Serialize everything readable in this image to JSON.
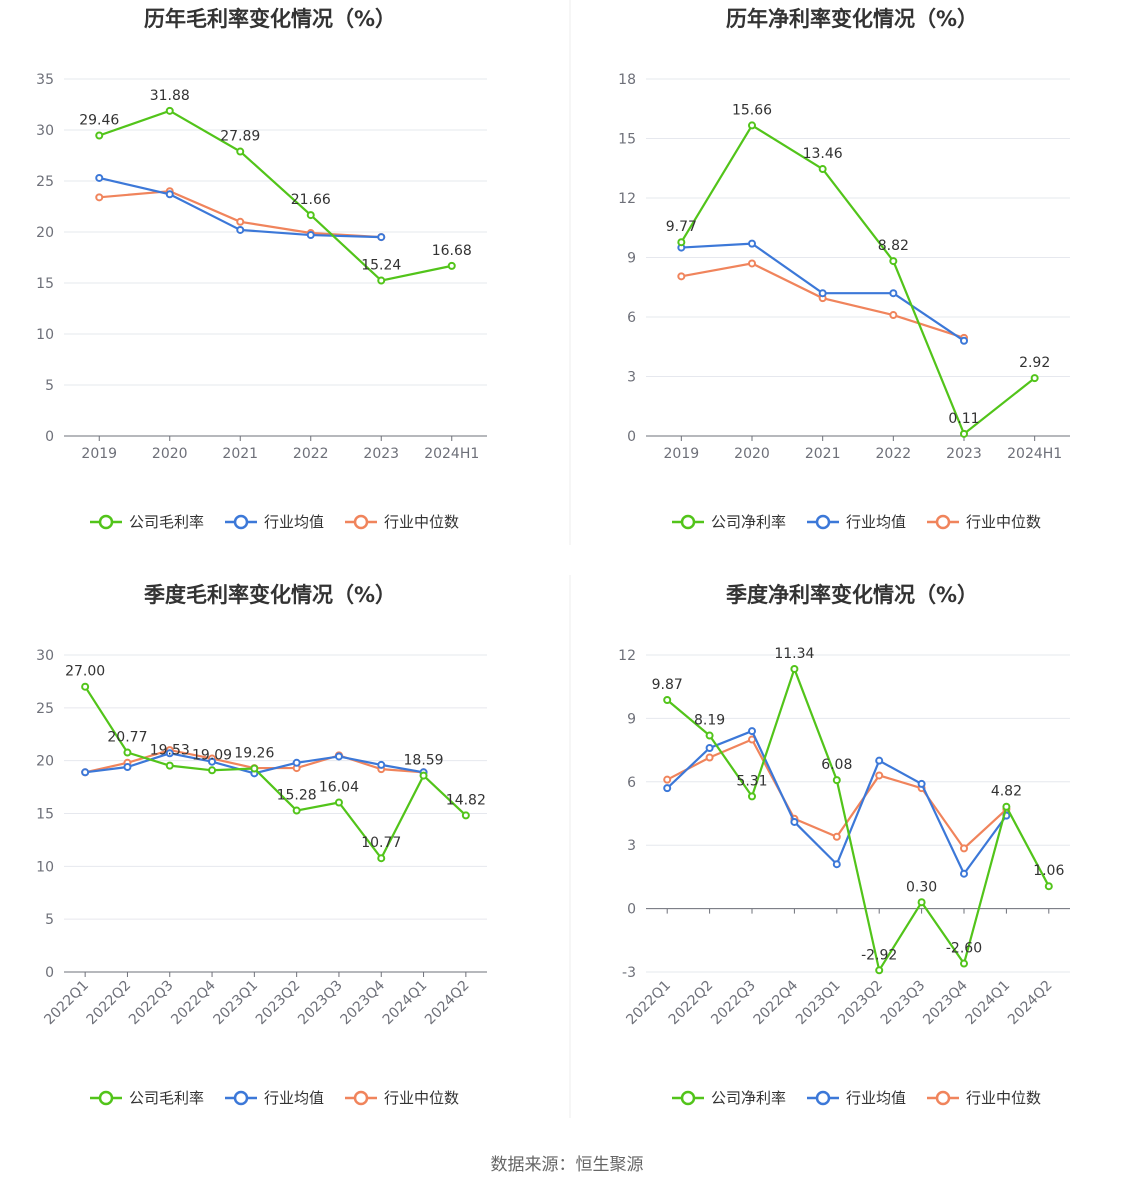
{
  "source": "数据来源：恒生聚源",
  "colors": {
    "company": "#52c41a",
    "avg": "#3c78d8",
    "median": "#f0845c",
    "grid": "#e6e8ee",
    "axis": "#6e7079"
  },
  "chart_data": [
    {
      "type": "line",
      "title": "历年毛利率变化情况（%）",
      "categories": [
        "2019",
        "2020",
        "2021",
        "2022",
        "2023",
        "2024H1"
      ],
      "ylim": [
        0,
        35
      ],
      "yticks": [
        0,
        5,
        10,
        15,
        20,
        25,
        30,
        35
      ],
      "legend": "bottom",
      "series": [
        {
          "name": "公司毛利率",
          "key": "company",
          "labels": true,
          "values": [
            29.46,
            31.88,
            27.89,
            21.66,
            15.24,
            16.68
          ]
        },
        {
          "name": "行业均值",
          "key": "avg",
          "labels": false,
          "values": [
            25.3,
            23.7,
            20.2,
            19.7,
            19.5,
            null
          ]
        },
        {
          "name": "行业中位数",
          "key": "median",
          "labels": false,
          "values": [
            23.4,
            24.0,
            21.0,
            19.9,
            19.5,
            null
          ]
        }
      ]
    },
    {
      "type": "line",
      "title": "历年净利率变化情况（%）",
      "categories": [
        "2019",
        "2020",
        "2021",
        "2022",
        "2023",
        "2024H1"
      ],
      "ylim": [
        0,
        18
      ],
      "yticks": [
        0,
        3,
        6,
        9,
        12,
        15,
        18
      ],
      "legend": "bottom",
      "series": [
        {
          "name": "公司净利率",
          "key": "company",
          "labels": true,
          "values": [
            9.77,
            15.66,
            13.46,
            8.82,
            0.11,
            2.92
          ]
        },
        {
          "name": "行业均值",
          "key": "avg",
          "labels": false,
          "values": [
            9.5,
            9.7,
            7.2,
            7.2,
            4.8,
            null
          ]
        },
        {
          "name": "行业中位数",
          "key": "median",
          "labels": false,
          "values": [
            8.05,
            8.7,
            6.95,
            6.1,
            4.95,
            null
          ]
        }
      ]
    },
    {
      "type": "line",
      "title": "季度毛利率变化情况（%）",
      "categories": [
        "2022Q1",
        "2022Q2",
        "2022Q3",
        "2022Q4",
        "2023Q1",
        "2023Q2",
        "2023Q3",
        "2023Q4",
        "2024Q1",
        "2024Q2"
      ],
      "ylim": [
        0,
        30
      ],
      "yticks": [
        0,
        5,
        10,
        15,
        20,
        25,
        30
      ],
      "legend": "bottom",
      "series": [
        {
          "name": "公司毛利率",
          "key": "company",
          "labels": true,
          "values": [
            27.0,
            20.77,
            19.53,
            19.09,
            19.26,
            15.28,
            16.04,
            10.77,
            18.59,
            14.82
          ],
          "value_text": [
            "27.00",
            "20.77",
            "19.53",
            "19.09",
            "19.26",
            "15.28",
            "16.04",
            "10.77",
            "18.59",
            "14.82"
          ]
        },
        {
          "name": "行业均值",
          "key": "avg",
          "labels": false,
          "values": [
            18.9,
            19.4,
            20.7,
            19.9,
            18.8,
            19.8,
            20.4,
            19.6,
            18.9,
            null
          ]
        },
        {
          "name": "行业中位数",
          "key": "median",
          "labels": false,
          "values": [
            18.9,
            19.8,
            21.0,
            20.2,
            19.3,
            19.3,
            20.5,
            19.2,
            18.9,
            null
          ]
        }
      ]
    },
    {
      "type": "line",
      "title": "季度净利率变化情况（%）",
      "categories": [
        "2022Q1",
        "2022Q2",
        "2022Q3",
        "2022Q4",
        "2023Q1",
        "2023Q2",
        "2023Q3",
        "2023Q4",
        "2024Q1",
        "2024Q2"
      ],
      "ylim": [
        -3,
        12
      ],
      "yticks": [
        -3,
        0,
        3,
        6,
        9,
        12
      ],
      "legend": "bottom",
      "series": [
        {
          "name": "公司净利率",
          "key": "company",
          "labels": true,
          "values": [
            9.87,
            8.19,
            5.31,
            11.34,
            6.08,
            -2.92,
            0.3,
            -2.6,
            4.82,
            1.06
          ],
          "value_text": [
            "9.87",
            "8.19",
            "5.31",
            "11.34",
            "6.08",
            "-2.92",
            "0.30",
            "-2.60",
            "4.82",
            "1.06"
          ]
        },
        {
          "name": "行业均值",
          "key": "avg",
          "labels": false,
          "values": [
            5.7,
            7.6,
            8.4,
            4.1,
            2.1,
            7.0,
            5.9,
            1.65,
            4.4,
            null
          ]
        },
        {
          "name": "行业中位数",
          "key": "median",
          "labels": false,
          "values": [
            6.1,
            7.15,
            8.0,
            4.25,
            3.4,
            6.3,
            5.7,
            2.85,
            4.7,
            null
          ]
        }
      ]
    }
  ]
}
